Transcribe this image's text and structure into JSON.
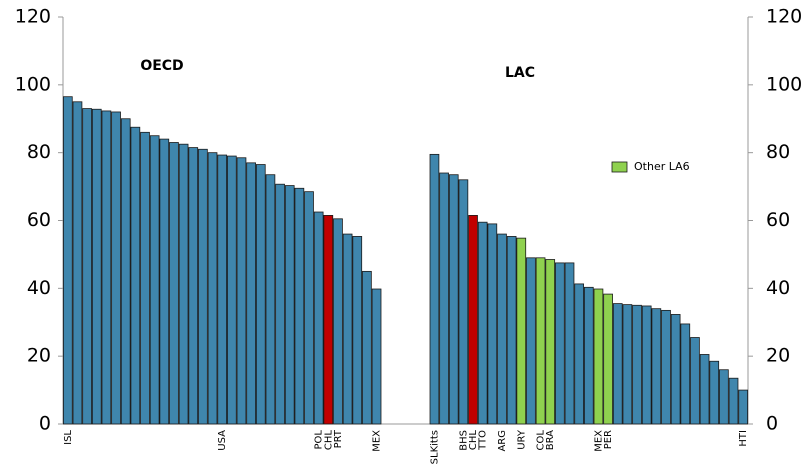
{
  "chart_data": {
    "type": "bar",
    "annotations": [
      "OECD",
      "LAC"
    ],
    "categories": [
      "ISL",
      null,
      null,
      null,
      null,
      null,
      null,
      null,
      null,
      null,
      null,
      null,
      null,
      null,
      null,
      null,
      "USA",
      null,
      null,
      null,
      null,
      null,
      null,
      null,
      null,
      null,
      "POL",
      "CHL",
      "PRT",
      null,
      null,
      null,
      "MEX",
      null,
      null,
      null,
      null,
      null,
      "SLKitts",
      null,
      null,
      "BHS",
      "CHL",
      "TTO",
      null,
      "ARG",
      null,
      "URY",
      null,
      "COL",
      "BRA",
      null,
      null,
      null,
      null,
      "MEX",
      "PER",
      null,
      null,
      null,
      null,
      null,
      null,
      null,
      null,
      null,
      null,
      null,
      null,
      null,
      "HTI"
    ],
    "values": [
      96.5,
      95,
      93,
      92.8,
      92.3,
      92,
      90,
      87.5,
      86,
      85,
      84,
      83,
      82.5,
      81.5,
      81,
      80,
      79.3,
      79,
      78.5,
      77,
      76.5,
      73.5,
      70.7,
      70.3,
      69.5,
      68.5,
      62.5,
      61.5,
      60.5,
      56,
      55.3,
      45,
      39.8,
      null,
      null,
      null,
      null,
      null,
      79.5,
      74,
      73.5,
      72,
      61.5,
      59.5,
      59,
      56,
      55.3,
      54.8,
      49,
      49,
      48.5,
      47.5,
      47.5,
      41.3,
      40.3,
      39.8,
      38.3,
      35.5,
      35.2,
      35,
      34.8,
      34,
      33.5,
      32.3,
      29.5,
      25.5,
      20.5,
      18.5,
      16,
      13.5,
      10
    ],
    "colors": [
      "#3f86ad",
      "#3f86ad",
      "#3f86ad",
      "#3f86ad",
      "#3f86ad",
      "#3f86ad",
      "#3f86ad",
      "#3f86ad",
      "#3f86ad",
      "#3f86ad",
      "#3f86ad",
      "#3f86ad",
      "#3f86ad",
      "#3f86ad",
      "#3f86ad",
      "#3f86ad",
      "#3f86ad",
      "#3f86ad",
      "#3f86ad",
      "#3f86ad",
      "#3f86ad",
      "#3f86ad",
      "#3f86ad",
      "#3f86ad",
      "#3f86ad",
      "#3f86ad",
      "#3f86ad",
      "#c00000",
      "#3f86ad",
      "#3f86ad",
      "#3f86ad",
      "#3f86ad",
      "#3f86ad",
      null,
      null,
      null,
      null,
      null,
      "#3f86ad",
      "#3f86ad",
      "#3f86ad",
      "#3f86ad",
      "#c00000",
      "#3f86ad",
      "#3f86ad",
      "#3f86ad",
      "#3f86ad",
      "#8fd14f",
      "#3f86ad",
      "#8fd14f",
      "#8fd14f",
      "#3f86ad",
      "#3f86ad",
      "#3f86ad",
      "#3f86ad",
      "#8fd14f",
      "#8fd14f",
      "#3f86ad",
      "#3f86ad",
      "#3f86ad",
      "#3f86ad",
      "#3f86ad",
      "#3f86ad",
      "#3f86ad",
      "#3f86ad",
      "#3f86ad",
      "#3f86ad",
      "#3f86ad",
      "#3f86ad",
      "#3f86ad",
      "#3f86ad"
    ],
    "legend": [
      {
        "name": "Other LA6",
        "color": "#8fd14f"
      }
    ],
    "ylim": [
      0,
      120
    ],
    "yticks": [
      0,
      20,
      40,
      60,
      80,
      100,
      120
    ],
    "y2lim": [
      0,
      120
    ],
    "y2ticks": [
      0,
      20,
      40,
      60,
      80,
      100,
      120
    ]
  }
}
